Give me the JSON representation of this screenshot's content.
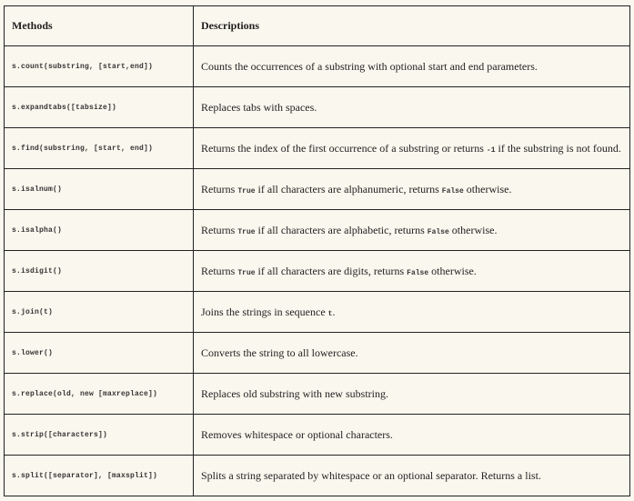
{
  "headers": {
    "methods": "Methods",
    "descriptions": "Descriptions"
  },
  "rows": [
    {
      "method": "s.count(substring, [start,end])",
      "description": [
        {
          "t": "Counts the occurrences of a substring with optional start and end parameters."
        }
      ]
    },
    {
      "method": "s.expandtabs([tabsize])",
      "description": [
        {
          "t": "Replaces tabs with spaces."
        }
      ]
    },
    {
      "method": "s.find(substring, [start, end])",
      "description": [
        {
          "t": "Returns the index of the first occurrence of a substring or returns "
        },
        {
          "t": "-1",
          "code": true
        },
        {
          "t": " if the substring is not found."
        }
      ]
    },
    {
      "method": "s.isalnum()",
      "description": [
        {
          "t": "Returns "
        },
        {
          "t": "True",
          "code": true
        },
        {
          "t": " if all characters are alphanumeric, returns "
        },
        {
          "t": "False",
          "code": true
        },
        {
          "t": " otherwise."
        }
      ]
    },
    {
      "method": "s.isalpha()",
      "description": [
        {
          "t": "Returns "
        },
        {
          "t": "True",
          "code": true
        },
        {
          "t": " if all characters are alphabetic, returns "
        },
        {
          "t": "False",
          "code": true
        },
        {
          "t": " otherwise."
        }
      ]
    },
    {
      "method": "s.isdigit()",
      "description": [
        {
          "t": "Returns "
        },
        {
          "t": "True",
          "code": true
        },
        {
          "t": " if all characters are digits, returns "
        },
        {
          "t": "False",
          "code": true
        },
        {
          "t": " otherwise."
        }
      ]
    },
    {
      "method": "s.join(t)",
      "description": [
        {
          "t": "Joins the strings in sequence "
        },
        {
          "t": "t",
          "code": true
        },
        {
          "t": "."
        }
      ]
    },
    {
      "method": "s.lower()",
      "description": [
        {
          "t": "Converts the string to all lowercase."
        }
      ]
    },
    {
      "method": "s.replace(old, new [maxreplace])",
      "description": [
        {
          "t": "Replaces old substring with new substring."
        }
      ]
    },
    {
      "method": "s.strip([characters])",
      "description": [
        {
          "t": "Removes whitespace or optional characters."
        }
      ]
    },
    {
      "method": "s.split([separator], [maxsplit])",
      "description": [
        {
          "t": "Splits a string separated by whitespace or an optional separator. Returns a list."
        }
      ]
    }
  ]
}
